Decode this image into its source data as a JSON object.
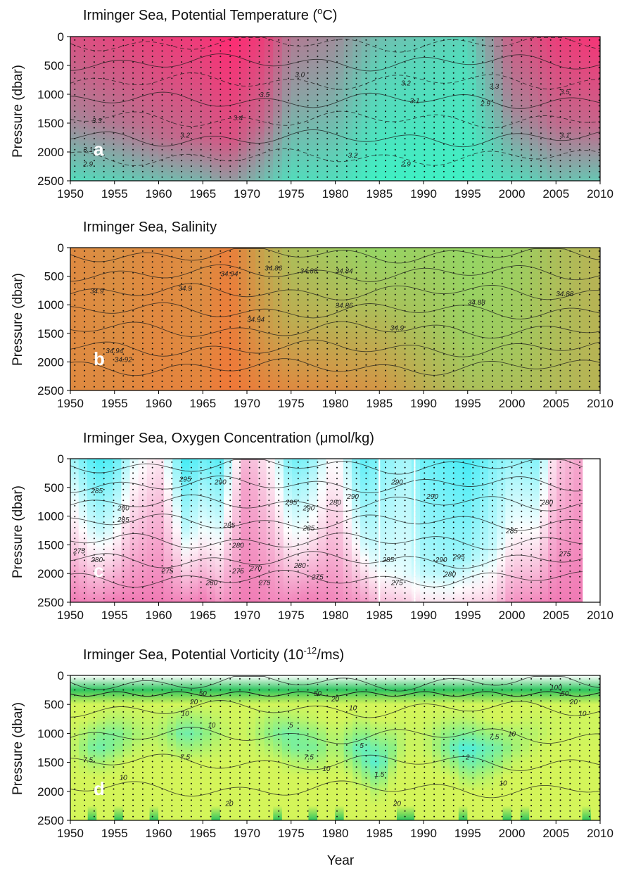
{
  "chart_data": [
    {
      "type": "heatmap",
      "panel_label": "a",
      "title": "Irminger Sea, Potential Temperature (",
      "title_sup": "o",
      "title_end": "C)",
      "ylabel": "Pressure (dbar)",
      "xlabel": "",
      "xlim": [
        1950,
        2010
      ],
      "ylim": [
        2500,
        0
      ],
      "x_ticks": [
        1950,
        1955,
        1960,
        1965,
        1970,
        1975,
        1980,
        1985,
        1990,
        1995,
        2000,
        2005,
        2010
      ],
      "y_ticks": [
        0,
        500,
        1000,
        1500,
        2000,
        2500
      ],
      "colors": [
        "#40f0c4",
        "#ff2a72"
      ],
      "contour_labels": [
        {
          "text": "3.3",
          "year": 1953,
          "pressure": 1500
        },
        {
          "text": "3.1",
          "year": 1952,
          "pressure": 2000
        },
        {
          "text": "2.9",
          "year": 1952,
          "pressure": 2250
        },
        {
          "text": "3.2",
          "year": 1963,
          "pressure": 1750
        },
        {
          "text": "3.4",
          "year": 1969,
          "pressure": 1450
        },
        {
          "text": "3.5",
          "year": 1972,
          "pressure": 1050
        },
        {
          "text": "3.0",
          "year": 1976,
          "pressure": 700
        },
        {
          "text": "3.2",
          "year": 1982,
          "pressure": 2100
        },
        {
          "text": "3.2",
          "year": 1988,
          "pressure": 850
        },
        {
          "text": "3.1",
          "year": 1989,
          "pressure": 1150
        },
        {
          "text": "2.9",
          "year": 1988,
          "pressure": 2250
        },
        {
          "text": "2.9",
          "year": 1997,
          "pressure": 1200
        },
        {
          "text": "3.3",
          "year": 1998,
          "pressure": 900
        },
        {
          "text": "3.5",
          "year": 2006,
          "pressure": 1000
        },
        {
          "text": "3.1",
          "year": 2006,
          "pressure": 1750
        }
      ],
      "field": {
        "years": [
          1950,
          1955,
          1960,
          1965,
          1968,
          1972,
          1975,
          1980,
          1985,
          1990,
          1995,
          2000,
          2005,
          2010
        ],
        "shallow": [
          0.8,
          0.85,
          0.9,
          0.92,
          1.0,
          0.9,
          0.6,
          0.5,
          0.25,
          0.2,
          0.15,
          0.75,
          0.9,
          0.95
        ],
        "deep": [
          0.1,
          0.15,
          0.25,
          0.3,
          0.45,
          0.25,
          0.1,
          0.1,
          0.0,
          0.0,
          0.0,
          0.1,
          0.25,
          0.2
        ],
        "depth": [
          1400,
          1500,
          1700,
          1800,
          1800,
          1500,
          1000,
          900,
          500,
          400,
          300,
          1300,
          1500,
          1600
        ]
      }
    },
    {
      "type": "heatmap",
      "panel_label": "b",
      "title": "Irminger Sea, Salinity",
      "title_sup": "",
      "title_end": "",
      "ylabel": "Pressure (dbar)",
      "xlabel": "",
      "xlim": [
        1950,
        2010
      ],
      "ylim": [
        2500,
        0
      ],
      "x_ticks": [
        1950,
        1955,
        1960,
        1965,
        1970,
        1975,
        1980,
        1985,
        1990,
        1995,
        2000,
        2005,
        2010
      ],
      "y_ticks": [
        0,
        500,
        1000,
        1500,
        2000,
        2500
      ],
      "colors": [
        "#7eee70",
        "#f07838"
      ],
      "contour_labels": [
        {
          "text": "34.9",
          "year": 1953,
          "pressure": 800
        },
        {
          "text": "34.92",
          "year": 1956,
          "pressure": 2000
        },
        {
          "text": "34.94",
          "year": 1955,
          "pressure": 1850
        },
        {
          "text": "34.9",
          "year": 1963,
          "pressure": 750
        },
        {
          "text": "34.94",
          "year": 1968,
          "pressure": 500
        },
        {
          "text": "34.94",
          "year": 1971,
          "pressure": 1300
        },
        {
          "text": "34.86",
          "year": 1973,
          "pressure": 400
        },
        {
          "text": "34.88",
          "year": 1977,
          "pressure": 450
        },
        {
          "text": "34.84",
          "year": 1981,
          "pressure": 450
        },
        {
          "text": "34.86",
          "year": 1981,
          "pressure": 1050
        },
        {
          "text": "34.9",
          "year": 1987,
          "pressure": 1450
        },
        {
          "text": "34.88",
          "year": 1996,
          "pressure": 1000
        },
        {
          "text": "34.88",
          "year": 2006,
          "pressure": 850
        }
      ],
      "field": {
        "years": [
          1950,
          1955,
          1960,
          1965,
          1968,
          1972,
          1975,
          1980,
          1985,
          1990,
          1995,
          2000,
          2005,
          2010
        ],
        "shallow": [
          0.85,
          0.8,
          0.85,
          0.8,
          0.95,
          0.6,
          0.4,
          0.3,
          0.2,
          0.25,
          0.2,
          0.25,
          0.4,
          0.5
        ],
        "deep": [
          0.85,
          0.85,
          0.9,
          0.9,
          1.0,
          0.9,
          0.85,
          0.8,
          0.75,
          0.55,
          0.4,
          0.4,
          0.45,
          0.5
        ],
        "depth": [
          1500,
          1400,
          1500,
          1500,
          1400,
          1400,
          1300,
          1200,
          1000,
          1300,
          1600,
          1500,
          1500,
          1400
        ]
      }
    },
    {
      "type": "heatmap",
      "panel_label": "c",
      "title": "Irminger Sea, Oxygen Concentration (",
      "title_sup": "",
      "title_mu": "μ",
      "title_end": "mol/kg)",
      "ylabel": "Pressure (dbar)",
      "xlabel": "",
      "xlim": [
        1950,
        2010
      ],
      "ylim": [
        2500,
        0
      ],
      "data_end_year": 2008,
      "gap_box": [
        1985,
        1989
      ],
      "x_ticks": [
        1950,
        1955,
        1960,
        1965,
        1970,
        1975,
        1980,
        1985,
        1990,
        1995,
        2000,
        2005,
        2010
      ],
      "y_ticks": [
        0,
        500,
        1000,
        1500,
        2000,
        2500
      ],
      "colors": [
        "#f07ab4",
        "#ffffff",
        "#30eaf4"
      ],
      "contour_labels": [
        {
          "text": "285",
          "year": 1953,
          "pressure": 600
        },
        {
          "text": "280",
          "year": 1956,
          "pressure": 900
        },
        {
          "text": "285",
          "year": 1956,
          "pressure": 1100
        },
        {
          "text": "275",
          "year": 1951,
          "pressure": 1650
        },
        {
          "text": "280",
          "year": 1953,
          "pressure": 1800
        },
        {
          "text": "275",
          "year": 1961,
          "pressure": 2000
        },
        {
          "text": "295",
          "year": 1963,
          "pressure": 400
        },
        {
          "text": "290",
          "year": 1967,
          "pressure": 450
        },
        {
          "text": "285",
          "year": 1968,
          "pressure": 1200
        },
        {
          "text": "280",
          "year": 1969,
          "pressure": 1550
        },
        {
          "text": "280",
          "year": 1966,
          "pressure": 2200
        },
        {
          "text": "275",
          "year": 1969,
          "pressure": 2000
        },
        {
          "text": "270",
          "year": 1971,
          "pressure": 1950
        },
        {
          "text": "275",
          "year": 1972,
          "pressure": 2200
        },
        {
          "text": "295",
          "year": 1975,
          "pressure": 800
        },
        {
          "text": "290",
          "year": 1977,
          "pressure": 900
        },
        {
          "text": "285",
          "year": 1977,
          "pressure": 1250
        },
        {
          "text": "280",
          "year": 1976,
          "pressure": 1900
        },
        {
          "text": "275",
          "year": 1978,
          "pressure": 2100
        },
        {
          "text": "280",
          "year": 1980,
          "pressure": 800
        },
        {
          "text": "290",
          "year": 1982,
          "pressure": 700
        },
        {
          "text": "290",
          "year": 1987,
          "pressure": 450
        },
        {
          "text": "285",
          "year": 1986,
          "pressure": 1800
        },
        {
          "text": "275",
          "year": 1987,
          "pressure": 2200
        },
        {
          "text": "290",
          "year": 1991,
          "pressure": 700
        },
        {
          "text": "290",
          "year": 1992,
          "pressure": 1800
        },
        {
          "text": "280",
          "year": 1993,
          "pressure": 2050
        },
        {
          "text": "295",
          "year": 1994,
          "pressure": 1750
        },
        {
          "text": "285",
          "year": 2000,
          "pressure": 1300
        },
        {
          "text": "280",
          "year": 2004,
          "pressure": 800
        },
        {
          "text": "275",
          "year": 2006,
          "pressure": 1700
        }
      ],
      "field": {
        "years": [
          1950,
          1953,
          1955,
          1957,
          1960,
          1963,
          1965,
          1967,
          1970,
          1973,
          1975,
          1977,
          1980,
          1983,
          1985,
          1988,
          1990,
          1993,
          1995,
          1998,
          2000,
          2003,
          2005,
          2008
        ],
        "shallow": [
          0.7,
          0.95,
          0.9,
          0.6,
          0.4,
          0.95,
          0.85,
          0.9,
          0.2,
          0.5,
          0.85,
          0.8,
          0.45,
          0.9,
          0.8,
          0.7,
          0.85,
          0.9,
          0.95,
          0.8,
          0.75,
          0.8,
          0.3,
          0.15
        ],
        "deep": [
          0.0,
          0.05,
          0.0,
          0.0,
          0.0,
          0.05,
          0.0,
          0.1,
          0.0,
          0.05,
          0.05,
          0.0,
          0.05,
          0.1,
          0.25,
          0.3,
          0.4,
          0.4,
          0.35,
          0.3,
          0.1,
          0.05,
          0.0,
          0.0
        ],
        "depth": [
          900,
          1300,
          1200,
          800,
          600,
          1300,
          1200,
          1100,
          400,
          900,
          1200,
          1200,
          800,
          1400,
          1800,
          2000,
          1900,
          1900,
          1700,
          1600,
          1200,
          1100,
          900,
          800
        ]
      }
    },
    {
      "type": "heatmap",
      "panel_label": "d",
      "title": "Irminger Sea, Potential Vorticity (10",
      "title_sup": "-12",
      "title_end": "/ms)",
      "ylabel": "Pressure (dbar)",
      "xlabel": "Year",
      "xlim": [
        1950,
        2010
      ],
      "ylim": [
        2500,
        0
      ],
      "x_ticks": [
        1950,
        1955,
        1960,
        1965,
        1970,
        1975,
        1980,
        1985,
        1990,
        1995,
        2000,
        2005,
        2010
      ],
      "y_ticks": [
        0,
        500,
        1000,
        1500,
        2000,
        2500
      ],
      "colors": [
        "#d4f55a",
        "#8af084",
        "#44eeee",
        "#2fc45e"
      ],
      "contour_labels": [
        {
          "text": "7.5",
          "year": 1952,
          "pressure": 1500
        },
        {
          "text": "10",
          "year": 1956,
          "pressure": 1800
        },
        {
          "text": "20",
          "year": 1964,
          "pressure": 500
        },
        {
          "text": "10",
          "year": 1963,
          "pressure": 700
        },
        {
          "text": "7.5",
          "year": 1963,
          "pressure": 1450
        },
        {
          "text": "50",
          "year": 1965,
          "pressure": 350
        },
        {
          "text": "10",
          "year": 1966,
          "pressure": 900
        },
        {
          "text": "20",
          "year": 1968,
          "pressure": 2250
        },
        {
          "text": "5",
          "year": 1975,
          "pressure": 900
        },
        {
          "text": "7.5",
          "year": 1977,
          "pressure": 1450
        },
        {
          "text": "10",
          "year": 1979,
          "pressure": 1650
        },
        {
          "text": "50",
          "year": 1978,
          "pressure": 350
        },
        {
          "text": "20",
          "year": 1980,
          "pressure": 450
        },
        {
          "text": "10",
          "year": 1982,
          "pressure": 600
        },
        {
          "text": "5",
          "year": 1983,
          "pressure": 1250
        },
        {
          "text": "1.5",
          "year": 1985,
          "pressure": 1750
        },
        {
          "text": "20",
          "year": 1987,
          "pressure": 2250
        },
        {
          "text": "2",
          "year": 1995,
          "pressure": 1450
        },
        {
          "text": "7.5",
          "year": 1998,
          "pressure": 1100
        },
        {
          "text": "10",
          "year": 1999,
          "pressure": 1900
        },
        {
          "text": "10",
          "year": 2000,
          "pressure": 1050
        },
        {
          "text": "100",
          "year": 2005,
          "pressure": 250
        },
        {
          "text": "50",
          "year": 2006,
          "pressure": 350
        },
        {
          "text": "20",
          "year": 2007,
          "pressure": 500
        },
        {
          "text": "10",
          "year": 2008,
          "pressure": 700
        }
      ],
      "field": {
        "years": [
          1950,
          1953,
          1955,
          1958,
          1960,
          1963,
          1965,
          1968,
          1970,
          1973,
          1975,
          1978,
          1980,
          1983,
          1985,
          1988,
          1990,
          1993,
          1995,
          1998,
          2000,
          2003,
          2005,
          2008,
          2010
        ],
        "core": [
          0.05,
          0.75,
          0.7,
          0.2,
          0.2,
          0.7,
          0.5,
          0.05,
          0.05,
          0.5,
          0.8,
          0.6,
          0.2,
          0.85,
          0.9,
          0.1,
          0.1,
          0.7,
          1.0,
          0.7,
          0.4,
          0.15,
          0.05,
          0.05,
          0.05
        ],
        "center": [
          1200,
          1200,
          1100,
          1000,
          1000,
          1000,
          1000,
          1000,
          1000,
          1000,
          1100,
          1200,
          1200,
          1300,
          1500,
          1100,
          1100,
          1200,
          1300,
          1300,
          1200,
          1000,
          900,
          900,
          900
        ],
        "halfwidth": [
          400,
          500,
          500,
          400,
          400,
          500,
          500,
          400,
          400,
          500,
          500,
          500,
          400,
          650,
          700,
          400,
          400,
          550,
          650,
          550,
          450,
          400,
          400,
          400,
          400
        ]
      }
    }
  ]
}
